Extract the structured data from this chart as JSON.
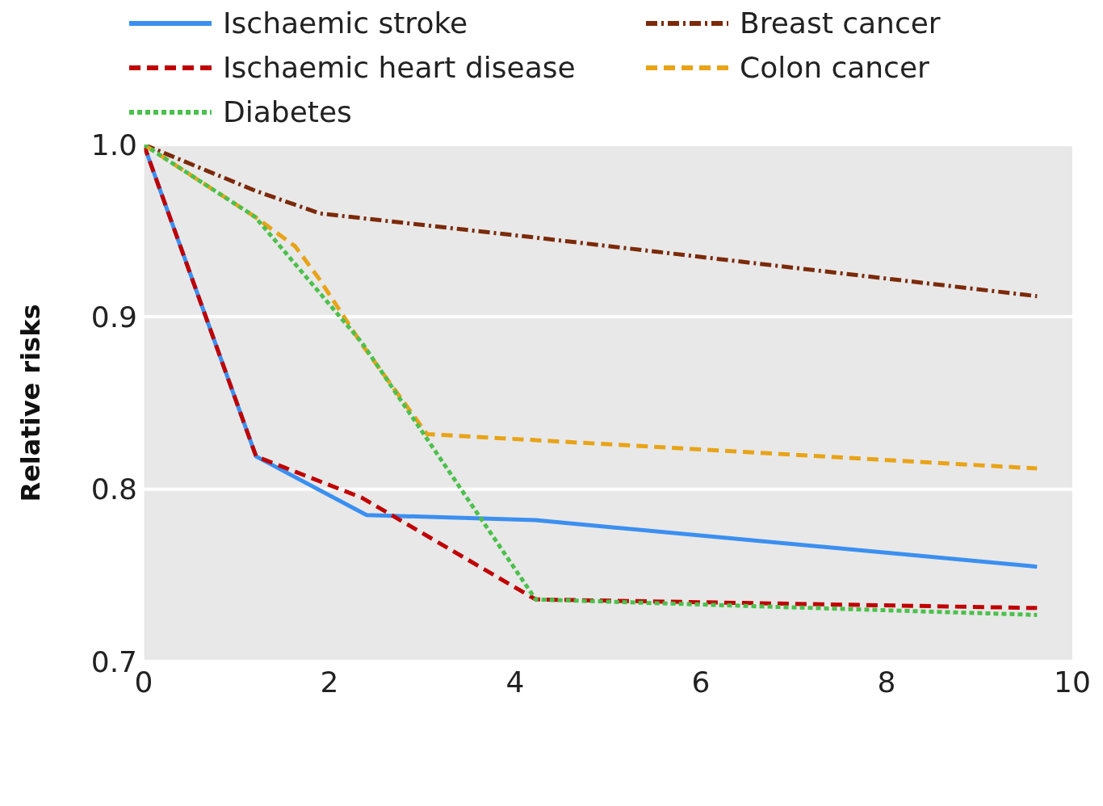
{
  "chart_data": {
    "type": "line",
    "ylabel": "Relative risks",
    "xlim": [
      0,
      10
    ],
    "xticks": [
      0,
      2,
      4,
      6,
      8,
      10
    ],
    "ylim": [
      0.7,
      1.0
    ],
    "yticks": [
      0.7,
      0.8,
      0.9,
      {
        "value": 1,
        "label": "1.0"
      }
    ],
    "grid": "y",
    "legend": "top",
    "marker": "none",
    "series": [
      {
        "name": "Ischaemic stroke",
        "color": "#3b8ff0",
        "line_style": "solid",
        "x": [
          0,
          1.21,
          2.4,
          4.22,
          9.62
        ],
        "values": [
          1.0,
          0.819,
          0.785,
          0.782,
          0.755
        ]
      },
      {
        "name": "Breast cancer",
        "color": "#7b2a0a",
        "line_style": "dashdot",
        "x": [
          0,
          1.21,
          1.9,
          4.22,
          9.62
        ],
        "values": [
          1.0,
          0.973,
          0.96,
          0.946,
          0.912
        ]
      },
      {
        "name": "Ischaemic heart disease",
        "color": "#c00000",
        "line_style": "dashed",
        "x": [
          0,
          1.21,
          2.35,
          4.22,
          9.62
        ],
        "values": [
          1.0,
          0.819,
          0.795,
          0.736,
          0.731
        ]
      },
      {
        "name": "Colon cancer",
        "color": "#e8a317",
        "line_style": "dashed",
        "x": [
          0,
          1.2,
          1.63,
          1.89,
          2.35,
          3.05,
          9.62
        ],
        "values": [
          1.0,
          0.958,
          0.941,
          0.922,
          0.884,
          0.832,
          0.812
        ]
      },
      {
        "name": "Diabetes",
        "color": "#4cc04c",
        "line_style": "dotted",
        "x": [
          0,
          1.2,
          2.35,
          4.22,
          9.62
        ],
        "values": [
          1.0,
          0.958,
          0.885,
          0.736,
          0.727
        ]
      }
    ]
  }
}
